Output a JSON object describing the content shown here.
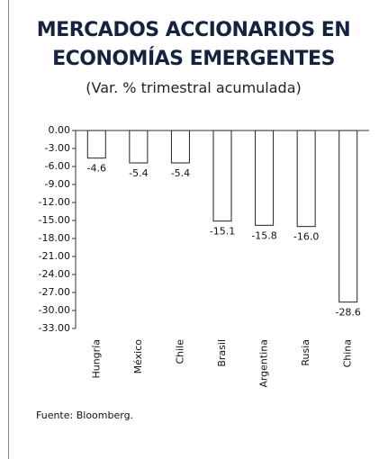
{
  "chart_data": {
    "type": "bar",
    "title": "MERCADOS ACCIONARIOS EN ECONOMÍAS EMERGENTES",
    "subtitle": "(Var. % trimestral acumulada)",
    "source": "Fuente: Bloomberg.",
    "categories": [
      "Hungría",
      "México",
      "Chile",
      "Brasil",
      "Argentina",
      "Rusia",
      "China"
    ],
    "values": [
      -4.6,
      -5.4,
      -5.4,
      -15.1,
      -15.8,
      -16.0,
      -28.6
    ],
    "value_labels": [
      "-4.6",
      "-5.4",
      "-5.4",
      "-15.1",
      "-15.8",
      "-16.0",
      "-28.6"
    ],
    "color": "#ffffff",
    "ylim": [
      -33,
      0
    ],
    "yticks": [
      {
        "value": 0,
        "label": "0.00"
      },
      {
        "value": -3,
        "label": "-3.00"
      },
      {
        "value": -6,
        "label": "-6.00"
      },
      {
        "value": -9,
        "label": "-9.00"
      },
      {
        "value": -12,
        "label": "-12.00"
      },
      {
        "value": -15,
        "label": "-15.00"
      },
      {
        "value": -18,
        "label": "-18.00"
      },
      {
        "value": -21,
        "label": "-21.00"
      },
      {
        "value": -24,
        "label": "-24.00"
      },
      {
        "value": -27,
        "label": "-27.00"
      },
      {
        "value": -30,
        "label": "-30.00"
      },
      {
        "value": -33,
        "label": "-33.00"
      }
    ],
    "grid": false
  }
}
